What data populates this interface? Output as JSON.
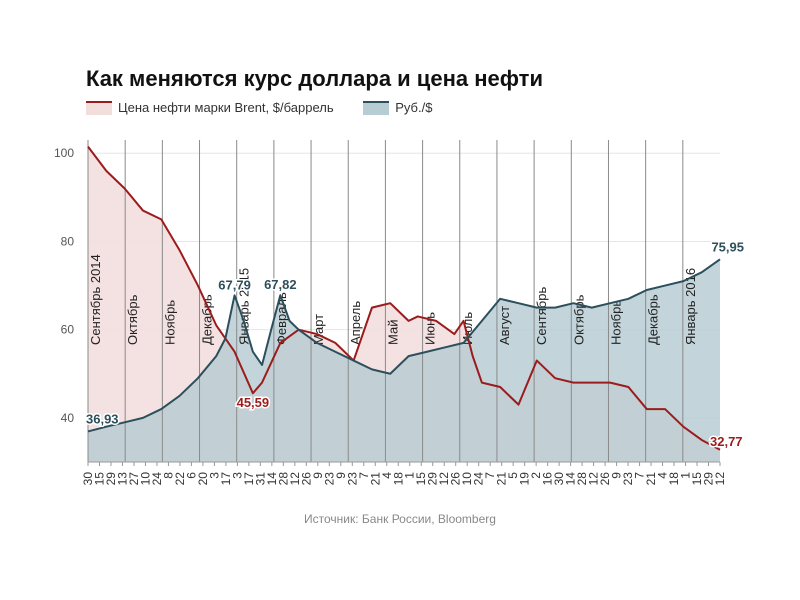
{
  "chart_data": {
    "type": "line",
    "title": "Как меняются курс доллара и цена нефти",
    "source": "Источник: Банк России, Bloomberg",
    "ylim": [
      30,
      103
    ],
    "y_ticks": [
      40,
      60,
      80,
      100
    ],
    "grid": true,
    "legend_position": "top-left",
    "series": [
      {
        "name": "Цена нефти марки Brent, $/баррель",
        "color": "#9b1c1c",
        "fill": "#f3dede",
        "x": [
          0,
          2,
          4,
          6,
          8,
          10,
          12,
          14,
          16,
          18,
          19,
          21,
          23,
          25,
          27,
          29,
          31,
          33,
          35,
          36,
          38,
          40,
          41,
          42,
          43,
          45,
          47,
          49,
          51,
          53,
          55,
          57,
          59,
          61,
          63,
          65,
          67,
          69
        ],
        "values": [
          101.5,
          96,
          92,
          87,
          85,
          78,
          70,
          61,
          55,
          45.59,
          48,
          57,
          60,
          59,
          57,
          53,
          65,
          66,
          62,
          63,
          62,
          59,
          62,
          54,
          48,
          47,
          43,
          53,
          49,
          48,
          48,
          48,
          47,
          42,
          42,
          38,
          35,
          32.77
        ]
      },
      {
        "name": "Руб./$",
        "color": "#2c4f5c",
        "fill": "#b8cdd3",
        "x": [
          0,
          2,
          4,
          6,
          8,
          10,
          12,
          14,
          15,
          16,
          17,
          18,
          19,
          20,
          21,
          22,
          23,
          25,
          27,
          29,
          31,
          33,
          35,
          37,
          39,
          41,
          43,
          45,
          47,
          49,
          51,
          53,
          55,
          57,
          59,
          61,
          63,
          65,
          67,
          69
        ],
        "values": [
          36.93,
          38,
          39,
          40,
          42,
          45,
          49,
          54,
          58,
          67.79,
          62,
          55,
          52,
          60,
          67.82,
          62,
          60,
          57,
          55,
          53,
          51,
          50,
          54,
          55,
          56,
          57,
          62,
          67,
          66,
          65,
          65,
          66,
          65,
          66,
          67,
          69,
          70,
          71,
          73,
          75.95
        ]
      }
    ],
    "x_tick_labels": [
      "30",
      "15",
      "29",
      "13",
      "27",
      "10",
      "24",
      "8",
      "22",
      "6",
      "20",
      "3",
      "17",
      "3",
      "17",
      "31",
      "14",
      "28",
      "12",
      "26",
      "9",
      "23",
      "9",
      "23",
      "7",
      "21",
      "4",
      "18",
      "1",
      "15",
      "29",
      "12",
      "26",
      "10",
      "24",
      "7",
      "21",
      "5",
      "19",
      "2",
      "16",
      "30",
      "14",
      "28",
      "12",
      "26",
      "9",
      "23",
      "7",
      "21",
      "4",
      "18",
      "1",
      "15",
      "29",
      "12"
    ],
    "month_labels": [
      {
        "text": "Сентябрь 2014",
        "x": 0
      },
      {
        "text": "Октябрь",
        "x": 3
      },
      {
        "text": "Ноябрь",
        "x": 6
      },
      {
        "text": "Декабрь",
        "x": 9
      },
      {
        "text": "Январь 2015",
        "x": 12
      },
      {
        "text": "Февраль",
        "x": 15
      },
      {
        "text": "Март",
        "x": 18
      },
      {
        "text": "Апрель",
        "x": 21
      },
      {
        "text": "Май",
        "x": 24
      },
      {
        "text": "Июнь",
        "x": 27
      },
      {
        "text": "Июль",
        "x": 30
      },
      {
        "text": "Август",
        "x": 33
      },
      {
        "text": "Сентябрь",
        "x": 36
      },
      {
        "text": "Октябрь",
        "x": 39
      },
      {
        "text": "Ноябрь",
        "x": 42
      },
      {
        "text": "Декабрь",
        "x": 45
      },
      {
        "text": "Январь 2016",
        "x": 48
      }
    ],
    "annotations": [
      {
        "text": "36,93",
        "series": 1,
        "x": 0,
        "value": 36.93
      },
      {
        "text": "67,79",
        "series": 1,
        "x": 16,
        "value": 67.79
      },
      {
        "text": "67,82",
        "series": 1,
        "x": 21,
        "value": 67.82
      },
      {
        "text": "45,59",
        "series": 0,
        "x": 18,
        "value": 45.59
      },
      {
        "text": "75,95",
        "series": 1,
        "x": 69,
        "value": 75.95
      },
      {
        "text": "32,77",
        "series": 0,
        "x": 69,
        "value": 32.77
      }
    ]
  }
}
